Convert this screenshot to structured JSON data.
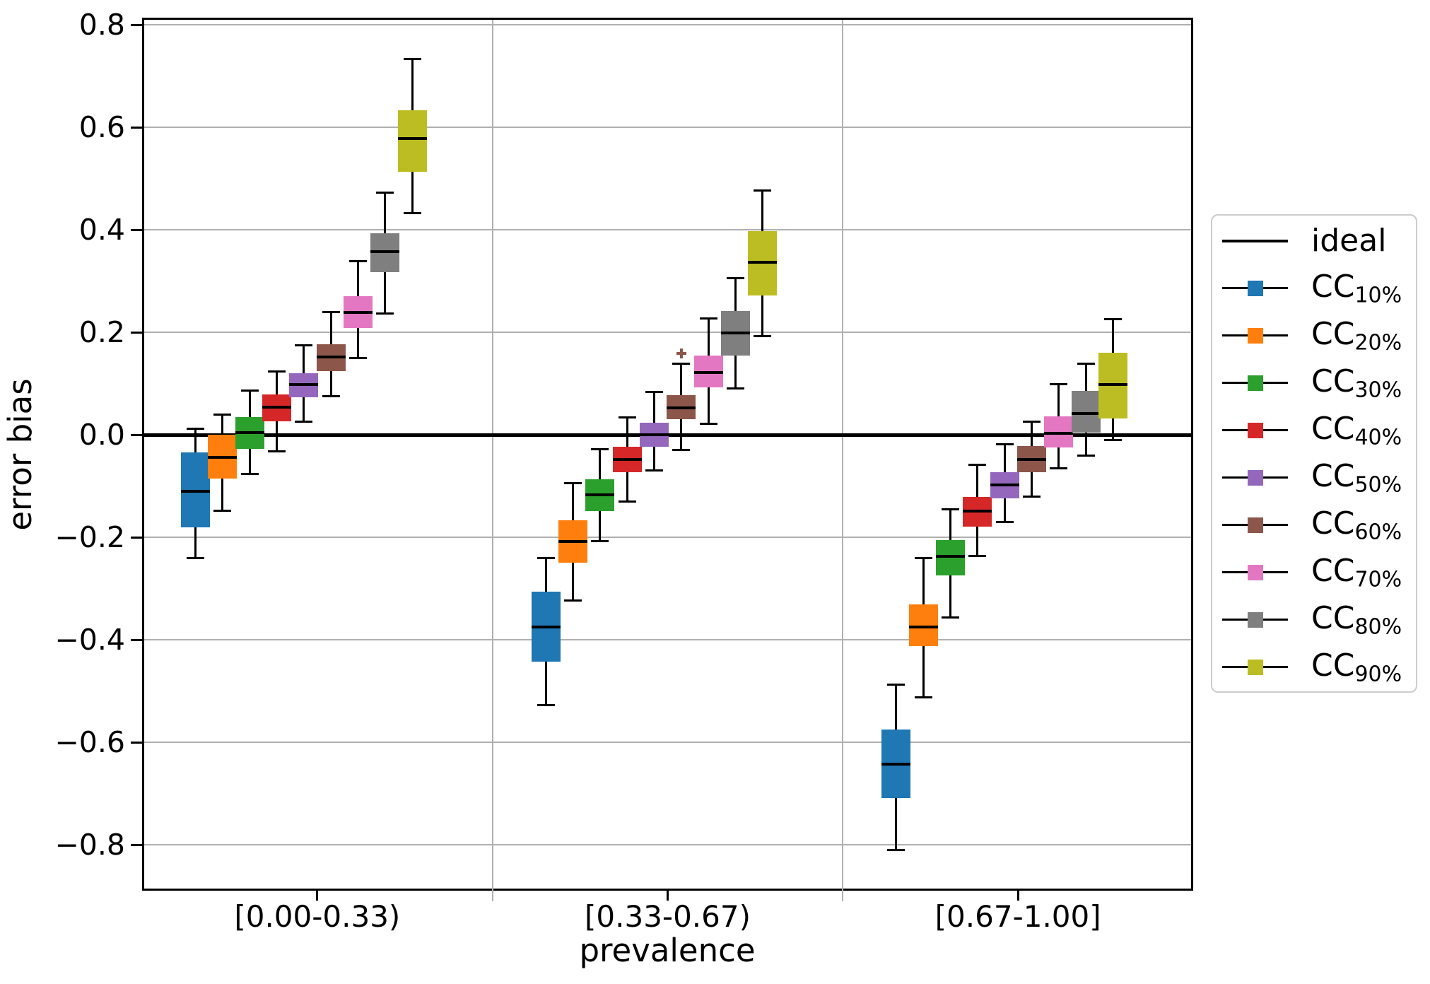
{
  "chart_data": {
    "type": "boxplot",
    "title": "",
    "xlabel": "prevalence",
    "ylabel": "error bias",
    "ylim": [
      -0.89,
      0.815
    ],
    "grid": true,
    "grid_color": "#b0b0b0",
    "background": "#ffffff",
    "legend_position": "center right",
    "ideal": {
      "label": "ideal",
      "value": 0.0,
      "color": "#000000"
    },
    "ytick_values": [
      0.8,
      0.6,
      0.4,
      0.2,
      0.0,
      -0.2,
      -0.4,
      -0.6,
      -0.8
    ],
    "ytick_labels": [
      "0.8",
      "0.6",
      "0.4",
      "0.2",
      "0.0",
      "−0.2",
      "−0.4",
      "−0.6",
      "−0.8"
    ],
    "groups": [
      "[0.00-0.33)",
      "[0.33-0.67)",
      "[0.67-1.00]"
    ],
    "series": [
      {
        "name": "CC10%",
        "label_base": "CC",
        "label_sub": "10%",
        "color": "#1f77b4",
        "boxes": [
          {
            "whislo": -0.241,
            "q1": -0.181,
            "med": -0.11,
            "q3": -0.034,
            "whishi": 0.012,
            "fliers": []
          },
          {
            "whislo": -0.527,
            "q1": -0.443,
            "med": -0.375,
            "q3": -0.306,
            "whishi": -0.24,
            "fliers": []
          },
          {
            "whislo": -0.811,
            "q1": -0.709,
            "med": -0.643,
            "q3": -0.575,
            "whishi": -0.487,
            "fliers": []
          }
        ]
      },
      {
        "name": "CC20%",
        "label_base": "CC",
        "label_sub": "20%",
        "color": "#ff7f0e",
        "boxes": [
          {
            "whislo": -0.148,
            "q1": -0.086,
            "med": -0.044,
            "q3": 0.0,
            "whishi": 0.039,
            "fliers": []
          },
          {
            "whislo": -0.324,
            "q1": -0.25,
            "med": -0.208,
            "q3": -0.167,
            "whishi": -0.094,
            "fliers": []
          },
          {
            "whislo": -0.513,
            "q1": -0.412,
            "med": -0.375,
            "q3": -0.331,
            "whishi": -0.241,
            "fliers": []
          }
        ]
      },
      {
        "name": "CC30%",
        "label_base": "CC",
        "label_sub": "30%",
        "color": "#2ca02c",
        "boxes": [
          {
            "whislo": -0.076,
            "q1": -0.028,
            "med": 0.004,
            "q3": 0.034,
            "whishi": 0.086,
            "fliers": []
          },
          {
            "whislo": -0.207,
            "q1": -0.149,
            "med": -0.117,
            "q3": -0.087,
            "whishi": -0.028,
            "fliers": []
          },
          {
            "whislo": -0.357,
            "q1": -0.274,
            "med": -0.237,
            "q3": -0.206,
            "whishi": -0.145,
            "fliers": []
          }
        ]
      },
      {
        "name": "CC40%",
        "label_base": "CC",
        "label_sub": "40%",
        "color": "#d62728",
        "boxes": [
          {
            "whislo": -0.032,
            "q1": 0.026,
            "med": 0.054,
            "q3": 0.079,
            "whishi": 0.124,
            "fliers": []
          },
          {
            "whislo": -0.131,
            "q1": -0.073,
            "med": -0.048,
            "q3": -0.023,
            "whishi": 0.034,
            "fliers": []
          },
          {
            "whislo": -0.237,
            "q1": -0.179,
            "med": -0.149,
            "q3": -0.121,
            "whishi": -0.058,
            "fliers": []
          }
        ]
      },
      {
        "name": "CC50%",
        "label_base": "CC",
        "label_sub": "50%",
        "color": "#9467bd",
        "boxes": [
          {
            "whislo": 0.025,
            "q1": 0.073,
            "med": 0.098,
            "q3": 0.12,
            "whishi": 0.175,
            "fliers": []
          },
          {
            "whislo": -0.069,
            "q1": -0.023,
            "med": 0.0,
            "q3": 0.023,
            "whishi": 0.083,
            "fliers": []
          },
          {
            "whislo": -0.17,
            "q1": -0.124,
            "med": -0.098,
            "q3": -0.073,
            "whishi": -0.018,
            "fliers": []
          }
        ]
      },
      {
        "name": "CC60%",
        "label_base": "CC",
        "label_sub": "60%",
        "color": "#8c564b",
        "boxes": [
          {
            "whislo": 0.075,
            "q1": 0.124,
            "med": 0.152,
            "q3": 0.177,
            "whishi": 0.24,
            "fliers": []
          },
          {
            "whislo": -0.03,
            "q1": 0.03,
            "med": 0.052,
            "q3": 0.077,
            "whishi": 0.138,
            "fliers": [
              0.158
            ]
          },
          {
            "whislo": -0.12,
            "q1": -0.073,
            "med": -0.048,
            "q3": -0.022,
            "whishi": 0.026,
            "fliers": []
          }
        ]
      },
      {
        "name": "CC70%",
        "label_base": "CC",
        "label_sub": "70%",
        "color": "#e377c2",
        "boxes": [
          {
            "whislo": 0.15,
            "q1": 0.208,
            "med": 0.239,
            "q3": 0.27,
            "whishi": 0.339,
            "fliers": []
          },
          {
            "whislo": 0.022,
            "q1": 0.092,
            "med": 0.121,
            "q3": 0.154,
            "whishi": 0.227,
            "fliers": []
          },
          {
            "whislo": -0.066,
            "q1": -0.025,
            "med": 0.003,
            "q3": 0.036,
            "whishi": 0.098,
            "fliers": []
          }
        ]
      },
      {
        "name": "CC80%",
        "label_base": "CC",
        "label_sub": "80%",
        "color": "#7f7f7f",
        "boxes": [
          {
            "whislo": 0.237,
            "q1": 0.317,
            "med": 0.357,
            "q3": 0.393,
            "whishi": 0.473,
            "fliers": []
          },
          {
            "whislo": 0.091,
            "q1": 0.155,
            "med": 0.198,
            "q3": 0.241,
            "whishi": 0.305,
            "fliers": []
          },
          {
            "whislo": -0.04,
            "q1": 0.004,
            "med": 0.042,
            "q3": 0.085,
            "whishi": 0.138,
            "fliers": []
          }
        ]
      },
      {
        "name": "CC90%",
        "label_base": "CC",
        "label_sub": "90%",
        "color": "#bcbd22",
        "boxes": [
          {
            "whislo": 0.433,
            "q1": 0.513,
            "med": 0.578,
            "q3": 0.633,
            "whishi": 0.733,
            "fliers": []
          },
          {
            "whislo": 0.193,
            "q1": 0.272,
            "med": 0.337,
            "q3": 0.397,
            "whishi": 0.477,
            "fliers": []
          },
          {
            "whislo": -0.011,
            "q1": 0.032,
            "med": 0.098,
            "q3": 0.16,
            "whishi": 0.226,
            "fliers": []
          }
        ]
      }
    ]
  }
}
